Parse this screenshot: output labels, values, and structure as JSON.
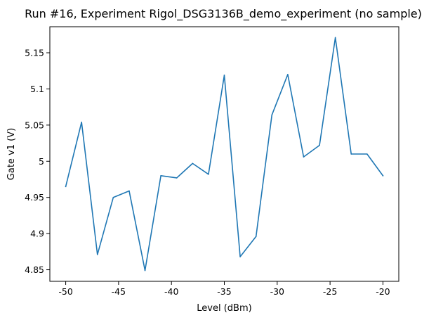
{
  "chart_data": {
    "type": "line",
    "title": "Run #16, Experiment Rigol_DSG3136B_demo_experiment (no sample)",
    "xlabel": "Level (dBm)",
    "ylabel": "Gate v1 (V)",
    "xlim": [
      -51.5,
      -18.5
    ],
    "ylim": [
      4.834,
      5.186
    ],
    "grid": false,
    "x_ticks": [
      -50,
      -45,
      -40,
      -35,
      -30,
      -25,
      -20
    ],
    "x_tick_labels": [
      "-50",
      "-45",
      "-40",
      "-35",
      "-30",
      "-25",
      "-20"
    ],
    "y_ticks": [
      4.85,
      4.9,
      4.95,
      5.0,
      5.05,
      5.1,
      5.15
    ],
    "y_tick_labels": [
      "4.85",
      "4.9",
      "4.95",
      "5",
      "5.05",
      "5.1",
      "5.15"
    ],
    "series": [
      {
        "color": "#1f77b4",
        "x": [
          -50,
          -48.5,
          -47,
          -45.5,
          -44,
          -42.5,
          -41,
          -39.5,
          -38,
          -36.5,
          -35,
          -33.5,
          -32,
          -30.5,
          -29,
          -27.5,
          -26,
          -24.5,
          -23,
          -21.5,
          -20
        ],
        "values": [
          4.965,
          5.054,
          4.871,
          4.95,
          4.959,
          4.849,
          4.98,
          4.977,
          4.997,
          4.982,
          5.119,
          4.868,
          4.896,
          5.064,
          5.12,
          5.006,
          5.022,
          5.171,
          5.01,
          5.01,
          4.98
        ]
      }
    ]
  }
}
